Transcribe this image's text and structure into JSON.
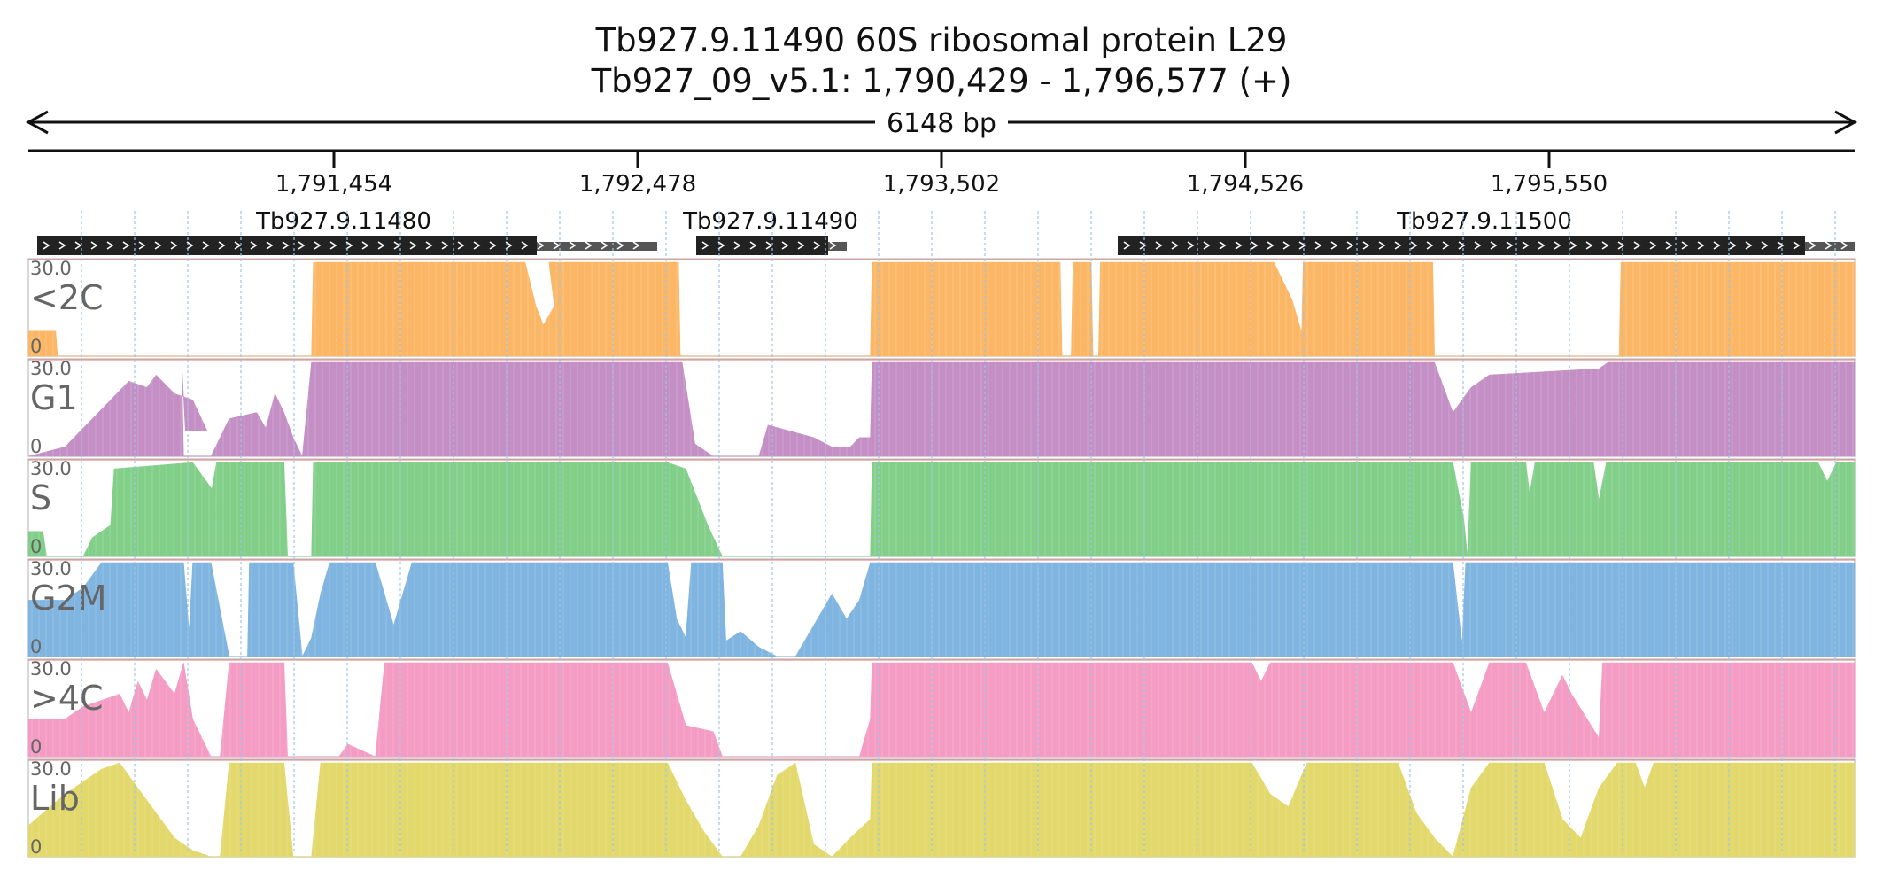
{
  "header": {
    "title_line1": "Tb927.9.11490  60S ribosomal protein L29",
    "title_line2": "Tb927_09_v5.1: 1,790,429 - 1,796,577 (+)",
    "span_label": "6148 bp"
  },
  "ruler": {
    "ticks": [
      "1,791,454",
      "1,792,478",
      "1,793,502",
      "1,794,526",
      "1,795,550"
    ]
  },
  "genes": [
    {
      "name": "Tb927.9.11480"
    },
    {
      "name": "Tb927.9.11490"
    },
    {
      "name": "Tb927.9.11500"
    }
  ],
  "tracks": [
    {
      "label": "<2C",
      "ymax": "30.0",
      "ymin": "0",
      "color": "#fbb766",
      "profile": [
        [
          0,
          8
        ],
        [
          0.015,
          8
        ],
        [
          0.016,
          0
        ],
        [
          0.155,
          0
        ],
        [
          0.156,
          30
        ],
        [
          0.272,
          30
        ],
        [
          0.278,
          16
        ],
        [
          0.282,
          10
        ],
        [
          0.288,
          16
        ],
        [
          0.285,
          30
        ],
        [
          0.356,
          30
        ],
        [
          0.357,
          0
        ],
        [
          0.461,
          0
        ],
        [
          0.462,
          30
        ],
        [
          0.565,
          30
        ],
        [
          0.566,
          0
        ],
        [
          0.571,
          0
        ],
        [
          0.572,
          30
        ],
        [
          0.582,
          30
        ],
        [
          0.583,
          0
        ],
        [
          0.586,
          0
        ],
        [
          0.587,
          30
        ],
        [
          0.682,
          30
        ],
        [
          0.692,
          18
        ],
        [
          0.7,
          2
        ],
        [
          0.702,
          0
        ],
        [
          0.697,
          0
        ],
        [
          0.698,
          30
        ],
        [
          0.769,
          30
        ],
        [
          0.77,
          0
        ],
        [
          0.871,
          0
        ],
        [
          0.872,
          30
        ],
        [
          1,
          30
        ]
      ]
    },
    {
      "label": "G1",
      "ymax": "30.0",
      "ymin": "0",
      "color": "#c38fc5",
      "profile": [
        [
          0,
          0
        ],
        [
          0.02,
          3
        ],
        [
          0.035,
          12
        ],
        [
          0.045,
          18
        ],
        [
          0.055,
          24
        ],
        [
          0.065,
          22
        ],
        [
          0.07,
          26
        ],
        [
          0.08,
          20
        ],
        [
          0.09,
          18
        ],
        [
          0.098,
          8
        ],
        [
          0.086,
          8
        ],
        [
          0.084,
          30
        ],
        [
          0.085,
          0
        ],
        [
          0.1,
          0
        ],
        [
          0.11,
          12
        ],
        [
          0.125,
          14
        ],
        [
          0.13,
          9
        ],
        [
          0.135,
          20
        ],
        [
          0.14,
          14
        ],
        [
          0.145,
          6
        ],
        [
          0.15,
          0
        ],
        [
          0.155,
          30
        ],
        [
          0.356,
          30
        ],
        [
          0.358,
          30
        ],
        [
          0.365,
          4
        ],
        [
          0.375,
          0
        ],
        [
          0.4,
          0
        ],
        [
          0.405,
          10
        ],
        [
          0.43,
          6
        ],
        [
          0.44,
          3
        ],
        [
          0.45,
          3
        ],
        [
          0.455,
          6
        ],
        [
          0.461,
          6
        ],
        [
          0.462,
          30
        ],
        [
          0.77,
          30
        ],
        [
          0.78,
          14
        ],
        [
          0.79,
          22
        ],
        [
          0.8,
          26
        ],
        [
          0.86,
          28
        ],
        [
          0.865,
          30
        ],
        [
          1,
          30
        ]
      ]
    },
    {
      "label": "S",
      "ymax": "30.0",
      "ymin": "0",
      "color": "#82cf89",
      "profile": [
        [
          0,
          8
        ],
        [
          0.008,
          8
        ],
        [
          0.01,
          0
        ],
        [
          0.03,
          0
        ],
        [
          0.035,
          6
        ],
        [
          0.045,
          10
        ],
        [
          0.047,
          28
        ],
        [
          0.09,
          30
        ],
        [
          0.1,
          22
        ],
        [
          0.105,
          18
        ],
        [
          0.11,
          12
        ],
        [
          0.1,
          12
        ],
        [
          0.1,
          20
        ],
        [
          0.103,
          30
        ],
        [
          0.14,
          30
        ],
        [
          0.142,
          0
        ],
        [
          0.155,
          0
        ],
        [
          0.156,
          30
        ],
        [
          0.35,
          30
        ],
        [
          0.36,
          28
        ],
        [
          0.372,
          10
        ],
        [
          0.38,
          0
        ],
        [
          0.461,
          0
        ],
        [
          0.462,
          30
        ],
        [
          0.78,
          30
        ],
        [
          0.786,
          12
        ],
        [
          0.788,
          0
        ],
        [
          0.79,
          30
        ],
        [
          0.82,
          30
        ],
        [
          0.822,
          20
        ],
        [
          0.825,
          30
        ],
        [
          0.857,
          30
        ],
        [
          0.86,
          18
        ],
        [
          0.864,
          30
        ],
        [
          0.98,
          30
        ],
        [
          0.985,
          24
        ],
        [
          0.99,
          30
        ],
        [
          1,
          30
        ]
      ]
    },
    {
      "label": "G2M",
      "ymax": "30.0",
      "ymin": "0",
      "color": "#7fb5e0",
      "profile": [
        [
          0,
          18
        ],
        [
          0.02,
          18
        ],
        [
          0.03,
          22
        ],
        [
          0.04,
          30
        ],
        [
          0.085,
          30
        ],
        [
          0.088,
          8
        ],
        [
          0.09,
          30
        ],
        [
          0.1,
          30
        ],
        [
          0.11,
          0
        ],
        [
          0.12,
          0
        ],
        [
          0.121,
          30
        ],
        [
          0.145,
          30
        ],
        [
          0.15,
          0
        ],
        [
          0.155,
          6
        ],
        [
          0.16,
          20
        ],
        [
          0.165,
          30
        ],
        [
          0.19,
          30
        ],
        [
          0.2,
          10
        ],
        [
          0.21,
          30
        ],
        [
          0.35,
          30
        ],
        [
          0.355,
          12
        ],
        [
          0.36,
          6
        ],
        [
          0.363,
          30
        ],
        [
          0.38,
          30
        ],
        [
          0.382,
          5
        ],
        [
          0.39,
          8
        ],
        [
          0.4,
          3
        ],
        [
          0.41,
          0
        ],
        [
          0.42,
          0
        ],
        [
          0.43,
          10
        ],
        [
          0.44,
          20
        ],
        [
          0.448,
          12
        ],
        [
          0.455,
          18
        ],
        [
          0.461,
          30
        ],
        [
          0.78,
          30
        ],
        [
          0.785,
          4
        ],
        [
          0.787,
          30
        ],
        [
          1,
          30
        ]
      ]
    },
    {
      "label": ">4C",
      "ymax": "30.0",
      "ymin": "0",
      "color": "#f49cc3",
      "profile": [
        [
          0,
          12
        ],
        [
          0.02,
          12
        ],
        [
          0.03,
          16
        ],
        [
          0.05,
          20
        ],
        [
          0.055,
          14
        ],
        [
          0.06,
          24
        ],
        [
          0.065,
          18
        ],
        [
          0.07,
          28
        ],
        [
          0.08,
          20
        ],
        [
          0.085,
          30
        ],
        [
          0.09,
          12
        ],
        [
          0.1,
          0
        ],
        [
          0.105,
          0
        ],
        [
          0.11,
          30
        ],
        [
          0.14,
          30
        ],
        [
          0.142,
          0
        ],
        [
          0.17,
          0
        ],
        [
          0.175,
          4
        ],
        [
          0.19,
          0
        ],
        [
          0.195,
          30
        ],
        [
          0.35,
          30
        ],
        [
          0.36,
          10
        ],
        [
          0.375,
          8
        ],
        [
          0.38,
          0
        ],
        [
          0.455,
          0
        ],
        [
          0.461,
          12
        ],
        [
          0.462,
          30
        ],
        [
          0.67,
          30
        ],
        [
          0.675,
          24
        ],
        [
          0.68,
          30
        ],
        [
          0.78,
          30
        ],
        [
          0.79,
          14
        ],
        [
          0.8,
          30
        ],
        [
          0.82,
          30
        ],
        [
          0.83,
          14
        ],
        [
          0.84,
          26
        ],
        [
          0.845,
          20
        ],
        [
          0.86,
          6
        ],
        [
          0.862,
          30
        ],
        [
          1,
          30
        ]
      ]
    },
    {
      "label": "Lib",
      "ymax": "30.0",
      "ymin": "0",
      "color": "#e2d86c",
      "profile": [
        [
          0,
          10
        ],
        [
          0.02,
          20
        ],
        [
          0.03,
          24
        ],
        [
          0.04,
          28
        ],
        [
          0.05,
          30
        ],
        [
          0.06,
          22
        ],
        [
          0.07,
          14
        ],
        [
          0.08,
          6
        ],
        [
          0.09,
          2
        ],
        [
          0.1,
          0
        ],
        [
          0.105,
          0
        ],
        [
          0.11,
          30
        ],
        [
          0.14,
          30
        ],
        [
          0.145,
          0
        ],
        [
          0.155,
          0
        ],
        [
          0.16,
          30
        ],
        [
          0.35,
          30
        ],
        [
          0.36,
          18
        ],
        [
          0.37,
          8
        ],
        [
          0.38,
          0
        ],
        [
          0.39,
          0
        ],
        [
          0.4,
          10
        ],
        [
          0.41,
          26
        ],
        [
          0.42,
          30
        ],
        [
          0.43,
          4
        ],
        [
          0.44,
          0
        ],
        [
          0.45,
          6
        ],
        [
          0.461,
          12
        ],
        [
          0.462,
          30
        ],
        [
          0.67,
          30
        ],
        [
          0.68,
          20
        ],
        [
          0.69,
          16
        ],
        [
          0.7,
          30
        ],
        [
          0.75,
          30
        ],
        [
          0.76,
          14
        ],
        [
          0.77,
          6
        ],
        [
          0.78,
          0
        ],
        [
          0.79,
          22
        ],
        [
          0.8,
          30
        ],
        [
          0.83,
          30
        ],
        [
          0.84,
          12
        ],
        [
          0.85,
          6
        ],
        [
          0.86,
          22
        ],
        [
          0.87,
          30
        ],
        [
          0.88,
          30
        ],
        [
          0.885,
          22
        ],
        [
          0.89,
          30
        ],
        [
          1,
          30
        ]
      ]
    }
  ],
  "colors": {
    "axis": "#111111",
    "grid": "#9ec4e8",
    "gene_body": "#222222",
    "gene_utr": "#555555",
    "track_border": "#cccccc",
    "track_text": "#666666",
    "track_topline": "#d44444"
  }
}
